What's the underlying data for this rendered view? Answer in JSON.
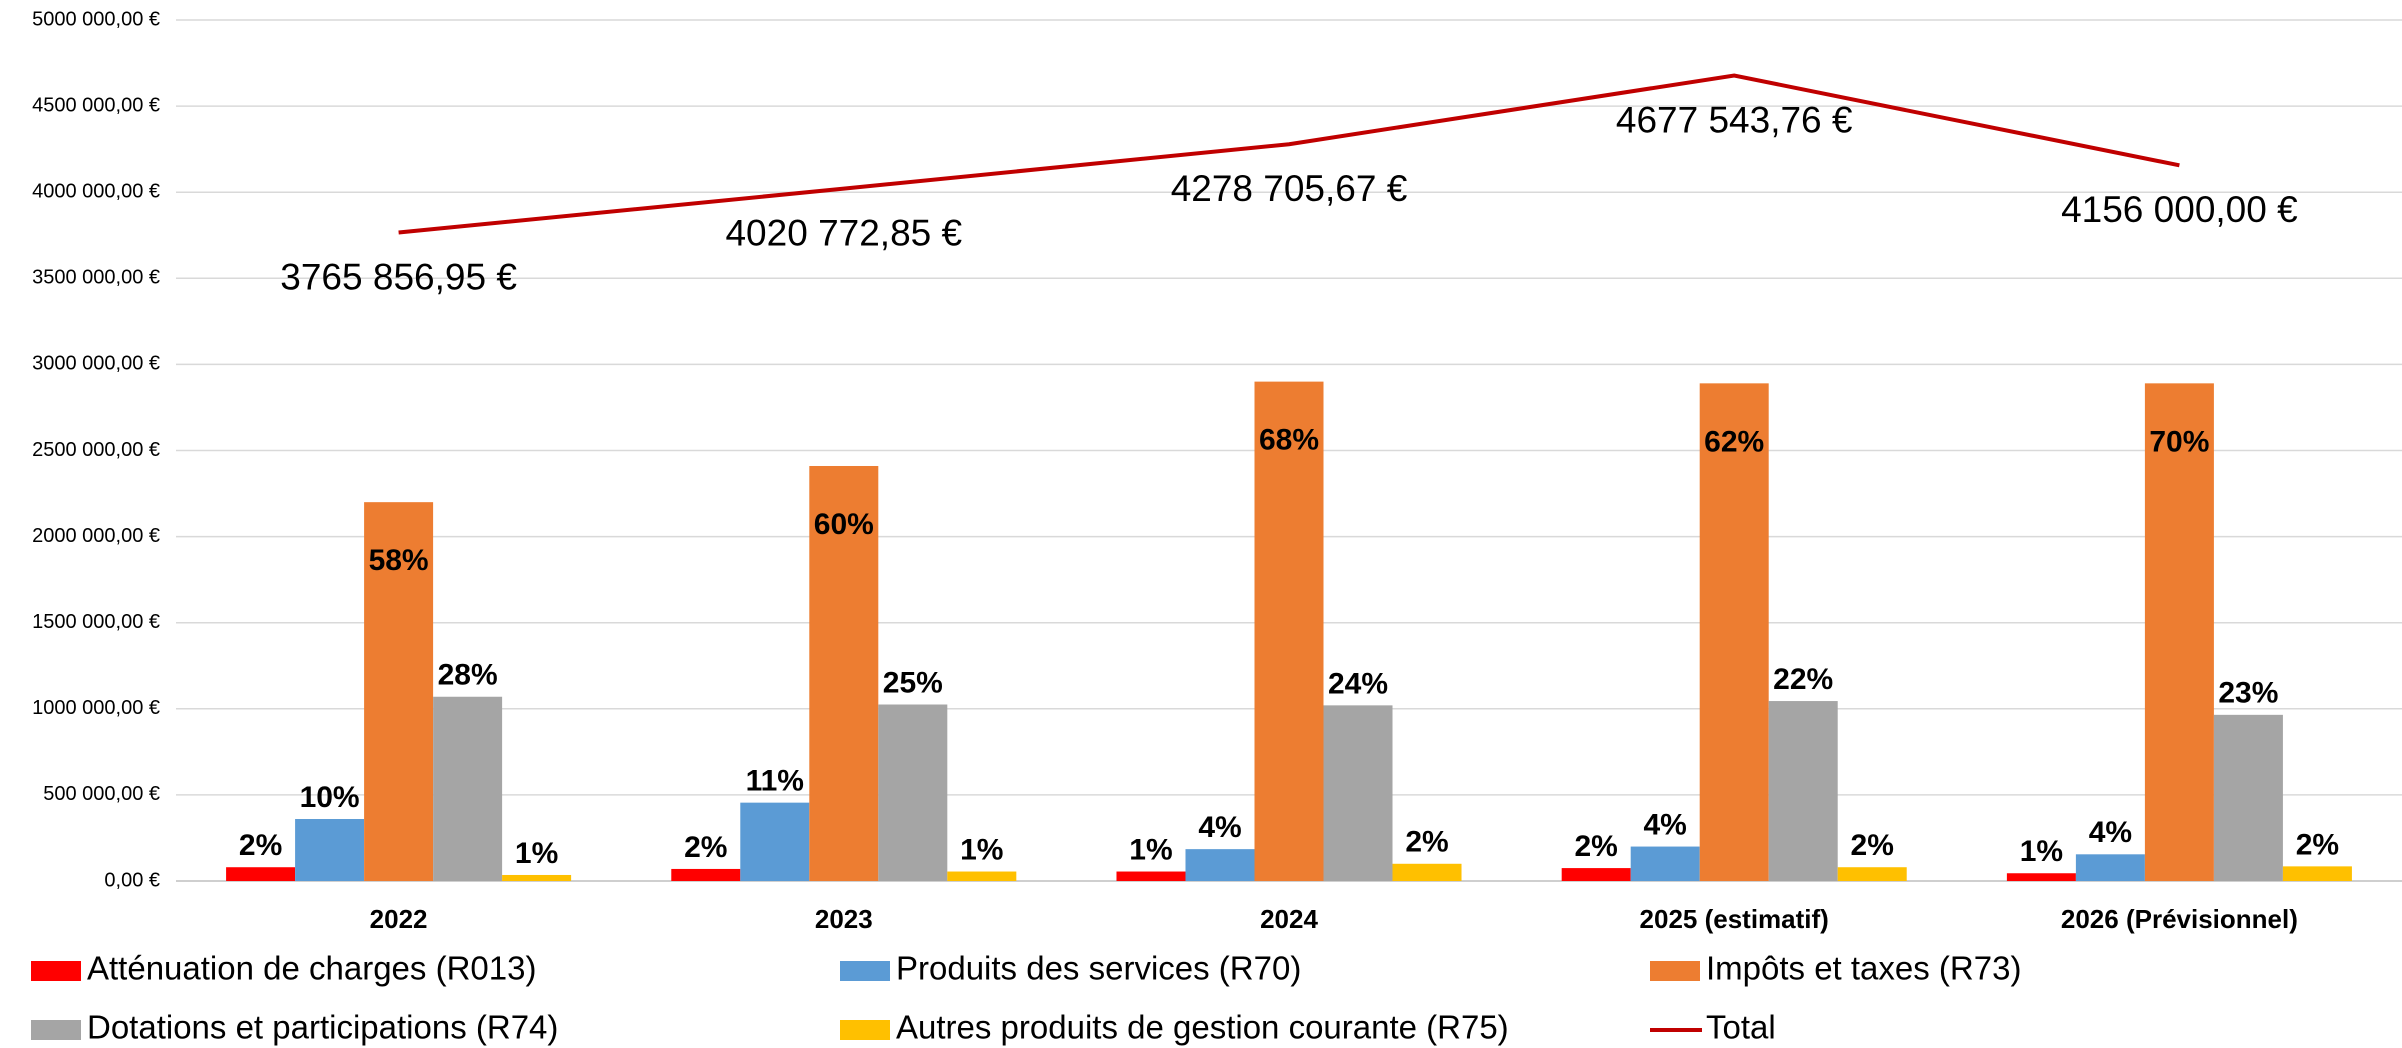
{
  "chart_data": {
    "type": "bar",
    "categories": [
      "2022",
      "2023",
      "2024",
      "2025 (estimatif)",
      "2026 (Prévisionnel)"
    ],
    "ylim": [
      0,
      5000000
    ],
    "yticks": [
      {
        "value": 0,
        "label": "0,00 €"
      },
      {
        "value": 500000,
        "label": "500 000,00 €"
      },
      {
        "value": 1000000,
        "label": "1000 000,00 €"
      },
      {
        "value": 1500000,
        "label": "1500 000,00 €"
      },
      {
        "value": 2000000,
        "label": "2000 000,00 €"
      },
      {
        "value": 2500000,
        "label": "2500 000,00 €"
      },
      {
        "value": 3000000,
        "label": "3000 000,00 €"
      },
      {
        "value": 3500000,
        "label": "3500 000,00 €"
      },
      {
        "value": 4000000,
        "label": "4000 000,00 €"
      },
      {
        "value": 4500000,
        "label": "4500 000,00 €"
      },
      {
        "value": 5000000,
        "label": "5000 000,00 €"
      }
    ],
    "grid": true,
    "legend": "bottom",
    "series": [
      {
        "name": "Atténuation de charges (R013)",
        "color": "#ff0000",
        "values": [
          80000,
          70000,
          55000,
          75000,
          45000
        ],
        "labels": [
          "2%",
          "2%",
          "1%",
          "2%",
          "1%"
        ]
      },
      {
        "name": "Produits des services (R70)",
        "color": "#5b9bd5",
        "values": [
          360000,
          455000,
          185000,
          200000,
          155000
        ],
        "labels": [
          "10%",
          "11%",
          "4%",
          "4%",
          "4%"
        ]
      },
      {
        "name": "Impôts et taxes (R73)",
        "color": "#ed7d31",
        "values": [
          2200000,
          2410000,
          2900000,
          2890000,
          2890000
        ],
        "labels": [
          "58%",
          "60%",
          "68%",
          "62%",
          "70%"
        ]
      },
      {
        "name": "Dotations et participations (R74)",
        "color": "#a5a5a5",
        "values": [
          1070000,
          1025000,
          1020000,
          1045000,
          965000
        ],
        "labels": [
          "28%",
          "25%",
          "24%",
          "22%",
          "23%"
        ]
      },
      {
        "name": "Autres produits de gestion courante (R75)",
        "color": "#ffc000",
        "values": [
          35000,
          55000,
          100000,
          80000,
          85000
        ],
        "labels": [
          "1%",
          "1%",
          "2%",
          "2%",
          "2%"
        ]
      },
      {
        "name": "Total",
        "type": "line",
        "color": "#c00000",
        "values": [
          3765856.95,
          4020772.85,
          4278705.67,
          4677543.76,
          4156000.0
        ],
        "value_labels": [
          "3765 856,95 €",
          "4020 772,85 €",
          "4278 705,67 €",
          "4677 543,76 €",
          "4156 000,00 €"
        ]
      }
    ]
  }
}
